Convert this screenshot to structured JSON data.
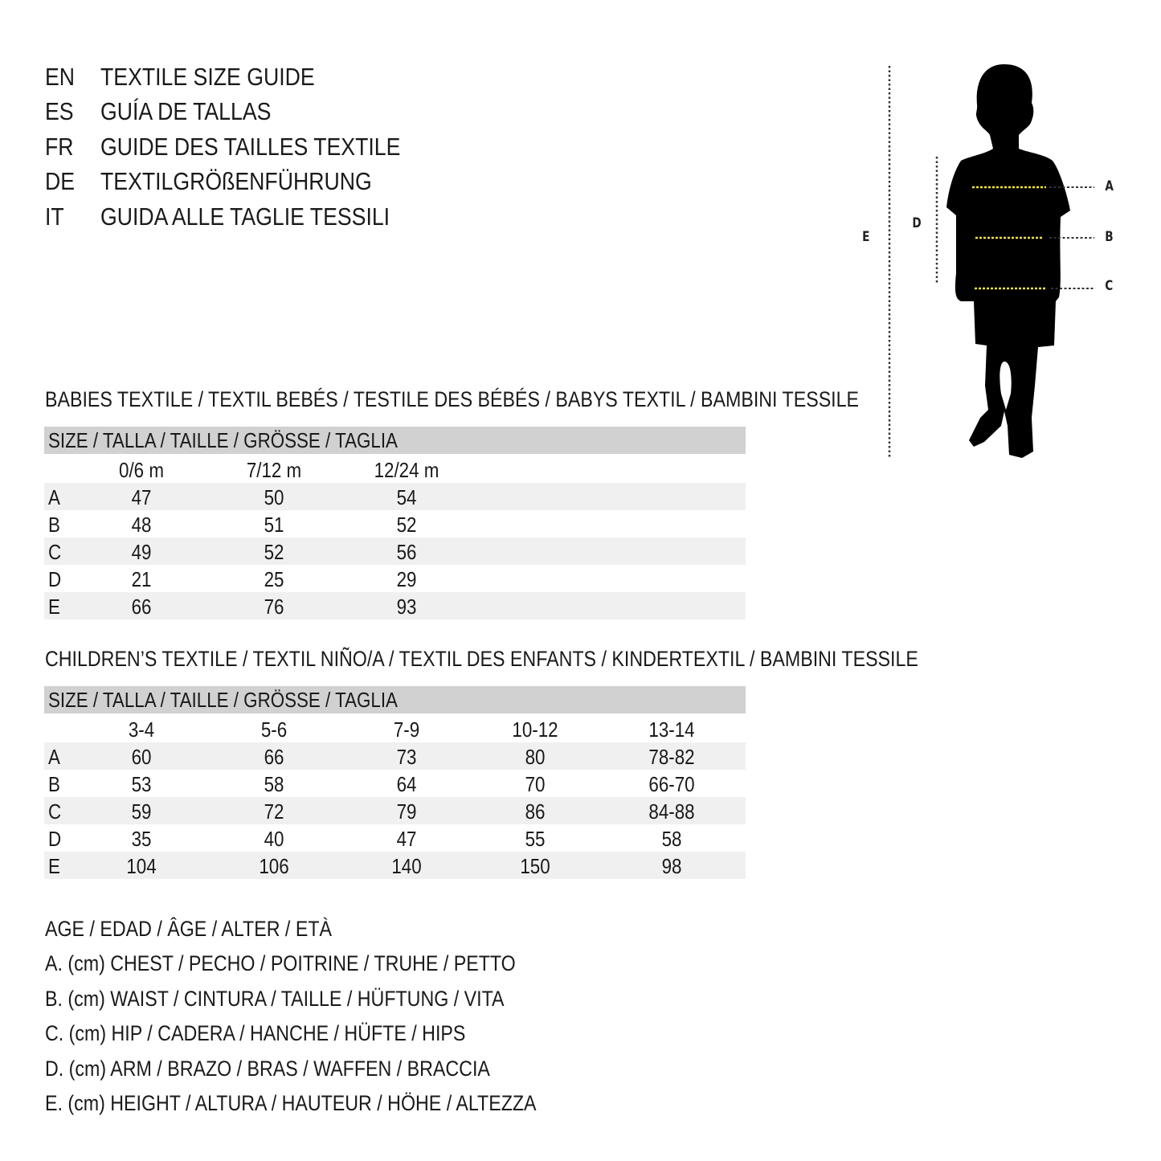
{
  "titles": [
    {
      "code": "EN",
      "text": "TEXTILE SIZE GUIDE"
    },
    {
      "code": "ES",
      "text": "GUÍA DE TALLAS"
    },
    {
      "code": "FR",
      "text": "GUIDE DES TAILLES TEXTILE"
    },
    {
      "code": "DE",
      "text": "TEXTILGRÖßENFÜHRUNG"
    },
    {
      "code": "IT",
      "text": "GUIDA ALLE TAGLIE TESSILI"
    }
  ],
  "figure": {
    "labels": {
      "a": "A",
      "b": "B",
      "c": "C",
      "d": "D",
      "e": "E"
    },
    "measure_line_color": "#f2e33a"
  },
  "babies": {
    "heading": "BABIES TEXTILE / TEXTIL BEBÉS / TESTILE DES BÉBÉS / BABYS TEXTIL / BAMBINI TESSILE",
    "size_header": "SIZE / TALLA / TAILLE / GRÖSSE / TAGLIA",
    "columns": [
      "0/6 m",
      "7/12 m",
      "12/24 m"
    ],
    "rows": [
      {
        "label": "A",
        "values": [
          "47",
          "50",
          "54"
        ]
      },
      {
        "label": "B",
        "values": [
          "48",
          "51",
          "52"
        ]
      },
      {
        "label": "C",
        "values": [
          "49",
          "52",
          "56"
        ]
      },
      {
        "label": "D",
        "values": [
          "21",
          "25",
          "29"
        ]
      },
      {
        "label": "E",
        "values": [
          "66",
          "76",
          "93"
        ]
      }
    ]
  },
  "children": {
    "heading": "CHILDREN’S TEXTILE / TEXTIL NIÑO/A / TEXTIL DES ENFANTS / KINDERTEXTIL / BAMBINI TESSILE",
    "size_header": "SIZE / TALLA / TAILLE / GRÖSSE / TAGLIA",
    "columns": [
      "3-4",
      "5-6",
      "7-9",
      "10-12",
      "13-14"
    ],
    "rows": [
      {
        "label": "A",
        "values": [
          "60",
          "66",
          "73",
          "80",
          "78-82"
        ]
      },
      {
        "label": "B",
        "values": [
          "53",
          "58",
          "64",
          "70",
          "66-70"
        ]
      },
      {
        "label": "C",
        "values": [
          "59",
          "72",
          "79",
          "86",
          "84-88"
        ]
      },
      {
        "label": "D",
        "values": [
          "35",
          "40",
          "47",
          "55",
          "58"
        ]
      },
      {
        "label": "E",
        "values": [
          "104",
          "106",
          "140",
          "150",
          "98"
        ]
      }
    ]
  },
  "legend": [
    "AGE / EDAD / ÂGE / ALTER / ETÀ",
    "A. (cm) CHEST / PECHO / POITRINE / TRUHE / PETTO",
    "B. (cm) WAIST / CINTURA / TAILLE / HÜFTUNG / VITA",
    "C. (cm) HIP / CADERA / HANCHE / HÜFTE / HIPS",
    "D. (cm) ARM / BRAZO / BRAS / WAFFEN / BRACCIA",
    "E. (cm) HEIGHT / ALTURA / HAUTEUR / HÖHE / ALTEZZA"
  ],
  "colors": {
    "header_bar": "#d1d1d1",
    "stripe": "#f0f0f0"
  }
}
